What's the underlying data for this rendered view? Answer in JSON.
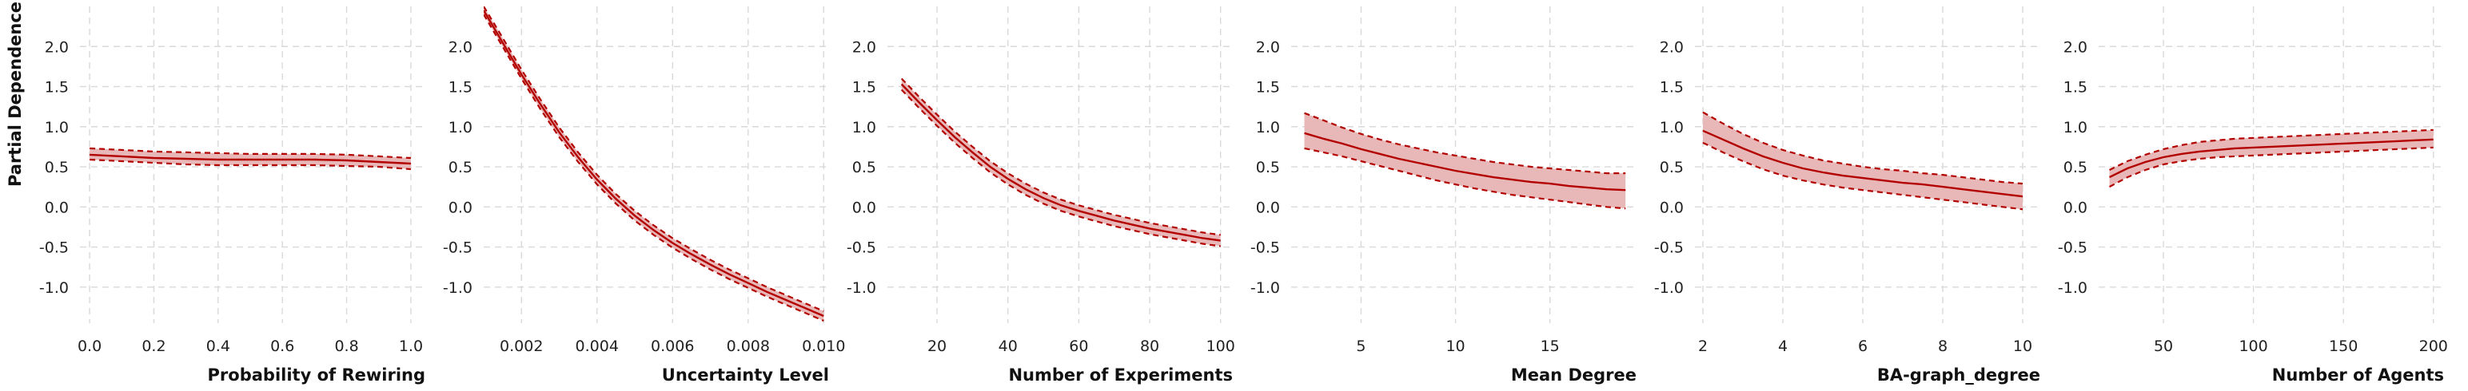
{
  "chart_data": [
    {
      "type": "line",
      "xlabel": "Probability of Rewiring",
      "ylabel": "Partial Dependence",
      "xlim": [
        -0.03,
        1.04
      ],
      "ylim": [
        -1.45,
        2.5
      ],
      "xticks": [
        0.0,
        0.2,
        0.4,
        0.6,
        0.8,
        1.0
      ],
      "xtick_labels": [
        "0.0",
        "0.2",
        "0.4",
        "0.6",
        "0.8",
        "1.0"
      ],
      "yticks": [
        2.0,
        1.5,
        1.0,
        0.5,
        0.0,
        -0.5,
        -1.0
      ],
      "ytick_labels": [
        "2.0",
        "1.5",
        "1.0",
        "0.5",
        "0.0",
        "-0.5",
        "-1.0"
      ],
      "x": [
        0.0,
        0.1,
        0.2,
        0.3,
        0.4,
        0.5,
        0.6,
        0.7,
        0.8,
        0.9,
        1.0
      ],
      "mean": [
        0.65,
        0.63,
        0.61,
        0.6,
        0.59,
        0.59,
        0.59,
        0.59,
        0.58,
        0.56,
        0.54
      ],
      "upper": [
        0.73,
        0.71,
        0.69,
        0.68,
        0.67,
        0.66,
        0.66,
        0.66,
        0.65,
        0.63,
        0.61
      ],
      "lower": [
        0.59,
        0.57,
        0.55,
        0.53,
        0.52,
        0.52,
        0.52,
        0.52,
        0.51,
        0.5,
        0.47
      ]
    },
    {
      "type": "line",
      "xlabel": "Uncertainty Level",
      "ylabel": "",
      "xlim": [
        0.001,
        0.0101
      ],
      "ylim": [
        -1.45,
        2.5
      ],
      "xticks": [
        0.002,
        0.004,
        0.006,
        0.008,
        0.01
      ],
      "xtick_labels": [
        "0.002",
        "0.004",
        "0.006",
        "0.008",
        "0.010"
      ],
      "yticks": [
        2.0,
        1.5,
        1.0,
        0.5,
        0.0,
        -0.5,
        -1.0
      ],
      "ytick_labels": [
        "2.0",
        "1.5",
        "1.0",
        "0.5",
        "0.0",
        "-0.5",
        "-1.0"
      ],
      "x": [
        0.001,
        0.0015,
        0.002,
        0.0025,
        0.003,
        0.0035,
        0.004,
        0.0045,
        0.005,
        0.0055,
        0.006,
        0.0065,
        0.007,
        0.0075,
        0.008,
        0.0085,
        0.009,
        0.0095,
        0.01
      ],
      "mean": [
        2.45,
        2.05,
        1.65,
        1.28,
        0.93,
        0.62,
        0.34,
        0.1,
        -0.11,
        -0.29,
        -0.45,
        -0.59,
        -0.72,
        -0.84,
        -0.95,
        -1.06,
        -1.16,
        -1.26,
        -1.36
      ],
      "upper": [
        2.5,
        2.11,
        1.71,
        1.34,
        0.99,
        0.68,
        0.4,
        0.16,
        -0.05,
        -0.23,
        -0.39,
        -0.53,
        -0.66,
        -0.78,
        -0.89,
        -1.0,
        -1.1,
        -1.2,
        -1.3
      ],
      "lower": [
        2.4,
        2.0,
        1.6,
        1.22,
        0.87,
        0.56,
        0.28,
        0.04,
        -0.17,
        -0.35,
        -0.51,
        -0.65,
        -0.78,
        -0.9,
        -1.01,
        -1.12,
        -1.22,
        -1.32,
        -1.42
      ]
    },
    {
      "type": "line",
      "xlabel": "Number of Experiments",
      "ylabel": "",
      "xlim": [
        6,
        103
      ],
      "ylim": [
        -1.45,
        2.5
      ],
      "xticks": [
        20,
        40,
        60,
        80,
        100
      ],
      "xtick_labels": [
        "20",
        "40",
        "60",
        "80",
        "100"
      ],
      "yticks": [
        2.0,
        1.5,
        1.0,
        0.5,
        0.0,
        -0.5,
        -1.0
      ],
      "ytick_labels": [
        "2.0",
        "1.5",
        "1.0",
        "0.5",
        "0.0",
        "-0.5",
        "-1.0"
      ],
      "x": [
        10,
        15,
        20,
        25,
        30,
        35,
        40,
        45,
        50,
        55,
        60,
        65,
        70,
        75,
        80,
        85,
        90,
        95,
        100
      ],
      "mean": [
        1.53,
        1.3,
        1.08,
        0.87,
        0.68,
        0.5,
        0.35,
        0.22,
        0.11,
        0.02,
        -0.05,
        -0.11,
        -0.17,
        -0.22,
        -0.27,
        -0.31,
        -0.35,
        -0.39,
        -0.42
      ],
      "upper": [
        1.6,
        1.37,
        1.15,
        0.94,
        0.75,
        0.57,
        0.42,
        0.29,
        0.18,
        0.09,
        0.02,
        -0.04,
        -0.1,
        -0.15,
        -0.2,
        -0.24,
        -0.28,
        -0.32,
        -0.35
      ],
      "lower": [
        1.46,
        1.23,
        1.01,
        0.8,
        0.61,
        0.43,
        0.28,
        0.15,
        0.04,
        -0.05,
        -0.12,
        -0.18,
        -0.24,
        -0.29,
        -0.34,
        -0.38,
        -0.42,
        -0.46,
        -0.49
      ]
    },
    {
      "type": "line",
      "xlabel": "Mean Degree",
      "ylabel": "",
      "xlim": [
        1.3,
        19.5
      ],
      "ylim": [
        -1.45,
        2.5
      ],
      "xticks": [
        5,
        10,
        15
      ],
      "xtick_labels": [
        "5",
        "10",
        "15"
      ],
      "yticks": [
        2.0,
        1.5,
        1.0,
        0.5,
        0.0,
        -0.5,
        -1.0
      ],
      "ytick_labels": [
        "2.0",
        "1.5",
        "1.0",
        "0.5",
        "0.0",
        "-0.5",
        "-1.0"
      ],
      "x": [
        2,
        3,
        4,
        5,
        6,
        7,
        8,
        9,
        10,
        11,
        12,
        13,
        14,
        15,
        16,
        17,
        18,
        19
      ],
      "mean": [
        0.92,
        0.85,
        0.79,
        0.72,
        0.66,
        0.6,
        0.55,
        0.5,
        0.45,
        0.41,
        0.37,
        0.34,
        0.31,
        0.29,
        0.26,
        0.24,
        0.22,
        0.21
      ],
      "upper": [
        1.17,
        1.08,
        0.99,
        0.91,
        0.84,
        0.78,
        0.73,
        0.68,
        0.64,
        0.6,
        0.56,
        0.53,
        0.5,
        0.48,
        0.46,
        0.44,
        0.42,
        0.42
      ],
      "lower": [
        0.73,
        0.68,
        0.63,
        0.57,
        0.51,
        0.45,
        0.39,
        0.33,
        0.28,
        0.23,
        0.19,
        0.15,
        0.12,
        0.09,
        0.06,
        0.03,
        0.0,
        -0.02
      ]
    },
    {
      "type": "line",
      "xlabel": "BA-graph_degree",
      "ylabel": "",
      "xlim": [
        1.8,
        10.4
      ],
      "ylim": [
        -1.45,
        2.5
      ],
      "xticks": [
        2,
        4,
        6,
        8,
        10
      ],
      "xtick_labels": [
        "2",
        "4",
        "6",
        "8",
        "10"
      ],
      "yticks": [
        2.0,
        1.5,
        1.0,
        0.5,
        0.0,
        -0.5,
        -1.0
      ],
      "ytick_labels": [
        "2.0",
        "1.5",
        "1.0",
        "0.5",
        "0.0",
        "-0.5",
        "-1.0"
      ],
      "x": [
        2,
        2.5,
        3,
        3.5,
        4,
        4.5,
        5,
        5.5,
        6,
        6.5,
        7,
        7.5,
        8,
        8.5,
        9,
        9.5,
        10
      ],
      "mean": [
        0.95,
        0.84,
        0.73,
        0.63,
        0.55,
        0.48,
        0.43,
        0.39,
        0.36,
        0.33,
        0.3,
        0.28,
        0.25,
        0.22,
        0.19,
        0.16,
        0.13
      ],
      "upper": [
        1.18,
        1.04,
        0.91,
        0.8,
        0.71,
        0.64,
        0.58,
        0.54,
        0.5,
        0.47,
        0.45,
        0.42,
        0.4,
        0.37,
        0.34,
        0.31,
        0.29
      ],
      "lower": [
        0.8,
        0.68,
        0.57,
        0.47,
        0.39,
        0.33,
        0.28,
        0.24,
        0.21,
        0.18,
        0.15,
        0.12,
        0.09,
        0.06,
        0.03,
        0.0,
        -0.03
      ]
    },
    {
      "type": "line",
      "xlabel": "Number of Agents",
      "ylabel": "",
      "xlim": [
        14,
        205
      ],
      "ylim": [
        -1.45,
        2.5
      ],
      "xticks": [
        50,
        100,
        150,
        200
      ],
      "xtick_labels": [
        "50",
        "100",
        "150",
        "200"
      ],
      "yticks": [
        2.0,
        1.5,
        1.0,
        0.5,
        0.0,
        -0.5,
        -1.0
      ],
      "ytick_labels": [
        "2.0",
        "1.5",
        "1.0",
        "0.5",
        "0.0",
        "-0.5",
        "-1.0"
      ],
      "x": [
        20,
        30,
        40,
        50,
        60,
        70,
        80,
        90,
        100,
        110,
        120,
        130,
        140,
        150,
        160,
        170,
        180,
        190,
        200
      ],
      "mean": [
        0.37,
        0.48,
        0.56,
        0.62,
        0.66,
        0.69,
        0.71,
        0.73,
        0.74,
        0.75,
        0.76,
        0.77,
        0.78,
        0.79,
        0.8,
        0.81,
        0.82,
        0.83,
        0.84
      ],
      "upper": [
        0.46,
        0.57,
        0.65,
        0.72,
        0.77,
        0.81,
        0.83,
        0.85,
        0.86,
        0.87,
        0.88,
        0.89,
        0.9,
        0.91,
        0.92,
        0.93,
        0.94,
        0.95,
        0.96
      ],
      "lower": [
        0.25,
        0.37,
        0.46,
        0.53,
        0.57,
        0.6,
        0.62,
        0.63,
        0.64,
        0.65,
        0.66,
        0.67,
        0.68,
        0.69,
        0.7,
        0.71,
        0.72,
        0.73,
        0.74
      ]
    }
  ],
  "style": {
    "line_color": "#b30000",
    "band_color": "#e8b8b8",
    "grid": true
  }
}
